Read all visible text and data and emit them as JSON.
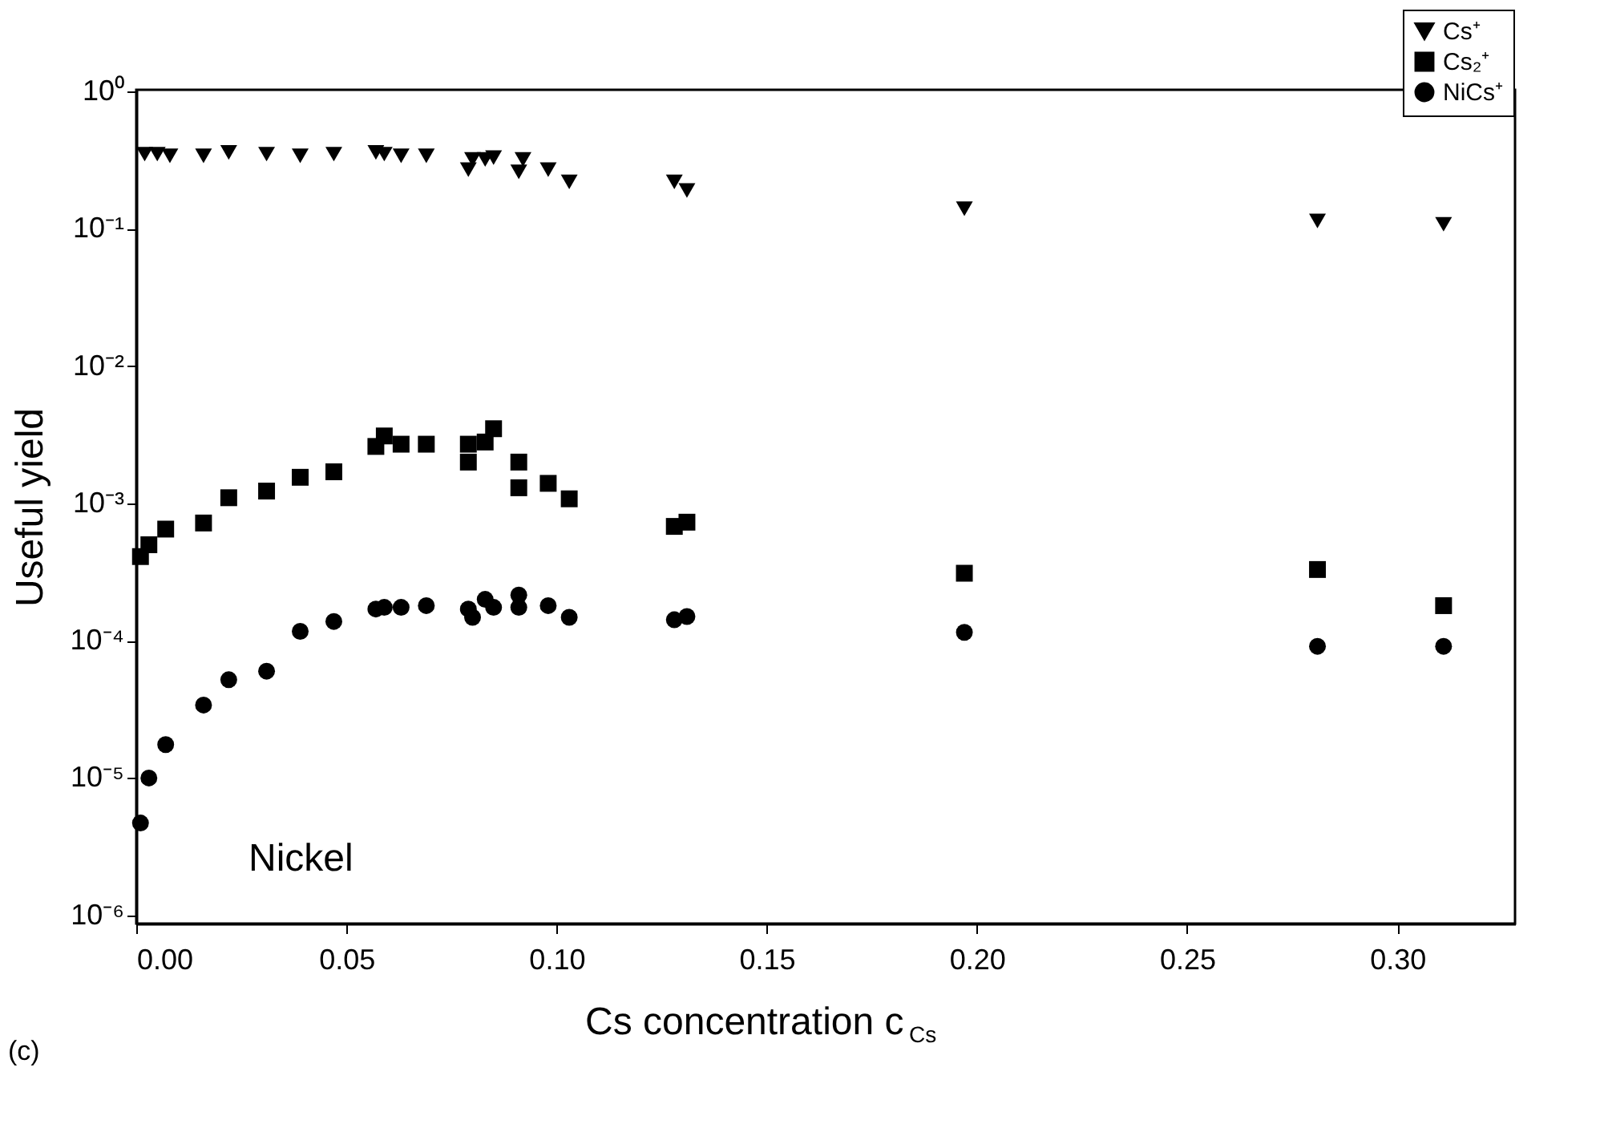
{
  "chart_data": {
    "type": "scatter",
    "xlabel": "Cs concentration c$_{Cs}$",
    "ylabel": "Useful yield",
    "annotations": [
      "Nickel",
      "(c)"
    ],
    "log": "y",
    "xlim": [
      0,
      0.328
    ],
    "xticks": [
      {
        "value": 0,
        "label": "0.00"
      },
      0.05,
      {
        "value": 0.1,
        "label": "0.10"
      },
      0.15,
      {
        "value": 0.2,
        "label": "0.20"
      },
      0.25,
      {
        "value": 0.3,
        "label": "0.30"
      }
    ],
    "ylim": [
      8.7e-07,
      1.03
    ],
    "yticks": [
      {
        "value": 1e-06,
        "label": "10⁻⁶"
      },
      {
        "value": 1e-05,
        "label": "10⁻⁵"
      },
      {
        "value": 0.0001,
        "label": "10⁻⁴"
      },
      {
        "value": 0.001,
        "label": "10⁻³"
      },
      {
        "value": 0.01,
        "label": "10⁻²"
      },
      {
        "value": 0.1,
        "label": "10⁻¹"
      },
      {
        "value": 1,
        "label": "10⁰"
      }
    ],
    "grid": false,
    "legend": "top right",
    "series": [
      {
        "name": "Cs⁺",
        "color": "#000000",
        "marker": "triangle",
        "x": [
          0.002,
          0.005,
          0.008,
          0.016,
          0.022,
          0.031,
          0.039,
          0.047,
          0.057,
          0.059,
          0.063,
          0.069,
          0.079,
          0.08,
          0.083,
          0.085,
          0.091,
          0.092,
          0.098,
          0.103,
          0.128,
          0.131,
          0.197,
          0.281,
          0.311
        ],
        "values": [
          0.35,
          0.35,
          0.34,
          0.34,
          0.36,
          0.35,
          0.34,
          0.35,
          0.36,
          0.35,
          0.34,
          0.34,
          0.27,
          0.32,
          0.32,
          0.33,
          0.26,
          0.32,
          0.27,
          0.22,
          0.22,
          0.19,
          0.14,
          0.114,
          0.108
        ]
      },
      {
        "name": "Cs₂⁺",
        "color": "#000000",
        "marker": "square",
        "x": [
          0.001,
          0.003,
          0.007,
          0.016,
          0.022,
          0.031,
          0.039,
          0.047,
          0.057,
          0.059,
          0.063,
          0.069,
          0.079,
          0.079,
          0.083,
          0.085,
          0.091,
          0.091,
          0.098,
          0.103,
          0.128,
          0.131,
          0.197,
          0.281,
          0.311
        ],
        "values": [
          0.00041,
          0.0005,
          0.00065,
          0.00072,
          0.0011,
          0.00123,
          0.00155,
          0.0017,
          0.0026,
          0.0031,
          0.0027,
          0.0027,
          0.0027,
          0.002,
          0.0028,
          0.0035,
          0.002,
          0.0013,
          0.0014,
          0.00108,
          0.00068,
          0.00073,
          0.00031,
          0.00033,
          0.00018
        ]
      },
      {
        "name": "NiCs⁺",
        "color": "#000000",
        "marker": "circle",
        "x": [
          0.001,
          0.003,
          0.007,
          0.016,
          0.022,
          0.031,
          0.039,
          0.047,
          0.057,
          0.059,
          0.063,
          0.069,
          0.079,
          0.08,
          0.083,
          0.085,
          0.091,
          0.091,
          0.098,
          0.103,
          0.128,
          0.131,
          0.197,
          0.281,
          0.311
        ],
        "values": [
          4.7e-06,
          1e-05,
          1.75e-05,
          3.4e-05,
          5.2e-05,
          6e-05,
          0.000117,
          0.000138,
          0.00017,
          0.000175,
          0.000175,
          0.00018,
          0.00017,
          0.000148,
          0.0002,
          0.000175,
          0.000215,
          0.000175,
          0.00018,
          0.000148,
          0.000142,
          0.00015,
          0.000115,
          9.1e-05,
          9.1e-05
        ]
      }
    ]
  }
}
